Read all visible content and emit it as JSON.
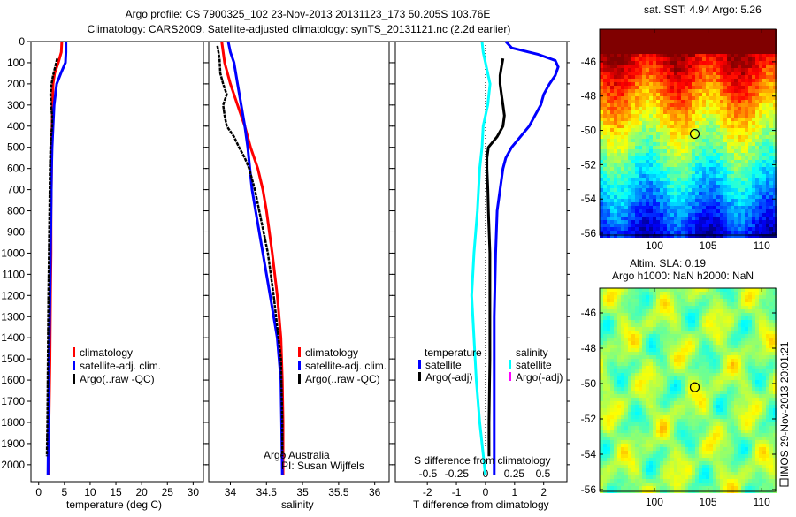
{
  "title": {
    "line1": "Argo profile: CS 7900325_102 23-Nov-2013 20131123_173 50.205S 103.76E",
    "line2": "Climatology: CARS2009. Satellite-adjusted climatology: synTS_20131121.nc (2.2d earlier)"
  },
  "colors": {
    "climatology": "#ff0000",
    "satellite": "#0000ff",
    "argo": "#000000",
    "salinity_satellite": "#00ffff",
    "salinity_argo": "#ff00ff"
  },
  "footer": {
    "stamp": "IMOS 29-Nov-2013 20:01:21",
    "argo_org": "Argo Australia",
    "pi": "PI: Susan Wijffels"
  },
  "chart_data": [
    {
      "type": "line",
      "id": "temperature",
      "xlabel": "temperature (deg C)",
      "ylabel": "",
      "xticks": [
        0,
        5,
        10,
        15,
        20,
        25,
        30
      ],
      "yticks": [
        0,
        100,
        200,
        300,
        400,
        500,
        600,
        700,
        800,
        900,
        1000,
        1100,
        1200,
        1300,
        1400,
        1500,
        1600,
        1700,
        1800,
        1900,
        2000
      ],
      "xlim": [
        -1.5,
        32
      ],
      "ylim": [
        2080,
        0
      ],
      "legend": {
        "placement": "lower-right",
        "entries": [
          "climatology",
          "satellite-adj. clim.",
          "Argo(..raw -QC)"
        ]
      },
      "series": [
        {
          "name": "climatology",
          "color": "#ff0000",
          "depth": [
            0,
            50,
            100,
            150,
            200,
            300,
            400,
            500,
            600,
            800,
            1000,
            1200,
            1500,
            1800,
            2050
          ],
          "values": [
            4.5,
            4.4,
            3.8,
            3.1,
            2.8,
            2.7,
            2.6,
            2.5,
            2.5,
            2.4,
            2.4,
            2.3,
            2.2,
            2.0,
            1.9
          ]
        },
        {
          "name": "satellite-adj. clim.",
          "color": "#0000ff",
          "depth": [
            0,
            50,
            100,
            150,
            200,
            300,
            400,
            500,
            600,
            800,
            1000,
            1200,
            1500,
            1800,
            2050
          ],
          "values": [
            5.3,
            5.3,
            5.2,
            4.3,
            3.5,
            3.0,
            2.8,
            2.6,
            2.5,
            2.4,
            2.3,
            2.2,
            2.0,
            1.9,
            1.8
          ]
        },
        {
          "name": "Argo(..raw -QC)",
          "color": "#000000",
          "depth": [
            80,
            120,
            160,
            200,
            250,
            300,
            350,
            400,
            450,
            500,
            600,
            800,
            1000,
            1200,
            1500,
            1800,
            1960
          ],
          "values": [
            3.6,
            3.2,
            2.8,
            2.5,
            2.3,
            2.4,
            2.6,
            2.6,
            2.4,
            2.3,
            2.2,
            2.1,
            2.0,
            1.9,
            1.8,
            1.7,
            1.6
          ]
        }
      ]
    },
    {
      "type": "line",
      "id": "salinity",
      "xlabel": "salinity",
      "xticks": [
        34,
        34.5,
        35,
        35.5,
        36
      ],
      "xlim": [
        33.7,
        36.2
      ],
      "ylim": [
        2080,
        0
      ],
      "legend": {
        "placement": "lower-right",
        "entries": [
          "climatology",
          "satellite-adj. clim.",
          "Argo(..raw -QC)"
        ]
      },
      "series": [
        {
          "name": "climatology",
          "color": "#ff0000",
          "depth": [
            0,
            100,
            200,
            300,
            400,
            500,
            600,
            700,
            800,
            1000,
            1200,
            1400,
            1600,
            1800,
            2050
          ],
          "values": [
            33.88,
            33.92,
            34.0,
            34.1,
            34.2,
            34.28,
            34.38,
            34.45,
            34.5,
            34.58,
            34.65,
            34.7,
            34.72,
            34.73,
            34.73
          ]
        },
        {
          "name": "satellite-adj. clim.",
          "color": "#0000ff",
          "depth": [
            0,
            50,
            100,
            200,
            300,
            400,
            500,
            600,
            700,
            800,
            1000,
            1200,
            1400,
            1600,
            1800,
            2050
          ],
          "values": [
            33.97,
            34.0,
            34.05,
            34.1,
            34.15,
            34.2,
            34.24,
            34.27,
            34.3,
            34.35,
            34.45,
            34.55,
            34.65,
            34.7,
            34.71,
            34.72
          ]
        },
        {
          "name": "Argo(..raw -QC)",
          "color": "#000000",
          "depth": [
            20,
            80,
            150,
            200,
            250,
            300,
            350,
            400,
            450,
            500,
            550,
            600,
            700,
            800,
            1000,
            1200,
            1500,
            1800,
            1960
          ],
          "values": [
            33.82,
            33.85,
            33.86,
            33.9,
            33.95,
            33.9,
            33.92,
            33.95,
            34.05,
            34.12,
            34.2,
            34.26,
            34.34,
            34.4,
            34.52,
            34.6,
            34.7,
            34.72,
            34.72
          ]
        }
      ]
    },
    {
      "type": "line",
      "id": "difference",
      "xlabel": "T difference from climatology",
      "x2label": "S difference from climatology",
      "xticks": [
        -2,
        -1,
        0,
        1,
        2
      ],
      "x2ticks": [
        "-0.5",
        "-0.25",
        "0",
        "0.25",
        "0.5"
      ],
      "xlim": [
        -3.1,
        2.8
      ],
      "x2lim": [
        -0.5,
        0.5
      ],
      "ylim": [
        2080,
        0
      ],
      "legend": {
        "placement": "lower-center",
        "headers": [
          "temperature",
          "salinity"
        ],
        "entries": [
          "satellite",
          "Argo(-adj)",
          "satellite",
          "Argo(-adj)"
        ]
      },
      "series": [
        {
          "name": "temperature satellite",
          "axis": "T",
          "color": "#0000ff",
          "depth": [
            0,
            30,
            60,
            90,
            120,
            160,
            200,
            250,
            300,
            350,
            400,
            450,
            500,
            550,
            600,
            700,
            800,
            1000,
            1300,
            1600,
            2050
          ],
          "values": [
            0.7,
            0.9,
            1.8,
            2.4,
            2.5,
            2.4,
            2.2,
            2.0,
            1.9,
            1.7,
            1.5,
            1.2,
            0.9,
            0.7,
            0.6,
            0.5,
            0.4,
            0.35,
            0.3,
            0.3,
            0.3
          ]
        },
        {
          "name": "temperature Argo(-adj)",
          "axis": "T",
          "color": "#000000",
          "depth": [
            80,
            120,
            160,
            200,
            250,
            300,
            350,
            400,
            450,
            500,
            550,
            600,
            700,
            800,
            1000,
            1200,
            1500,
            1800,
            1960
          ],
          "values": [
            0.6,
            0.55,
            0.5,
            0.5,
            0.55,
            0.6,
            0.65,
            0.6,
            0.4,
            0.1,
            0.05,
            0.05,
            0.08,
            0.1,
            0.15,
            0.15,
            0.15,
            0.12,
            0.12
          ]
        },
        {
          "name": "salinity satellite",
          "axis": "S",
          "color": "#00ffff",
          "depth": [
            0,
            50,
            100,
            200,
            300,
            400,
            500,
            600,
            800,
            1000,
            1200,
            1400,
            1600,
            1800,
            2000,
            2050
          ],
          "values": [
            -0.03,
            -0.02,
            0.0,
            0.04,
            0.02,
            -0.02,
            -0.03,
            -0.05,
            -0.07,
            -0.1,
            -0.12,
            -0.1,
            -0.08,
            -0.05,
            -0.01,
            0.0
          ]
        }
      ]
    },
    {
      "type": "heatmap",
      "id": "sst-map",
      "title": "sat. SST: 4.94 Argo: 5.26",
      "xticks": [
        100,
        105,
        110
      ],
      "yticks": [
        -46,
        -48,
        -50,
        -52,
        -54,
        -56
      ],
      "xlim": [
        94.9,
        111.3
      ],
      "ylim": [
        -56.1,
        -44.1
      ],
      "marker": {
        "lon": 103.76,
        "lat": -50.205
      }
    },
    {
      "type": "heatmap",
      "id": "sla-map",
      "title": "Altim. SLA: 0.19",
      "subtitle": "Argo h1000: NaN h2000: NaN",
      "xticks": [
        100,
        105,
        110
      ],
      "yticks": [
        -46,
        -48,
        -50,
        -52,
        -54,
        -56
      ],
      "xlim": [
        94.9,
        111.3
      ],
      "ylim": [
        -56.1,
        -44.6
      ],
      "marker": {
        "lon": 103.76,
        "lat": -50.205
      }
    }
  ]
}
